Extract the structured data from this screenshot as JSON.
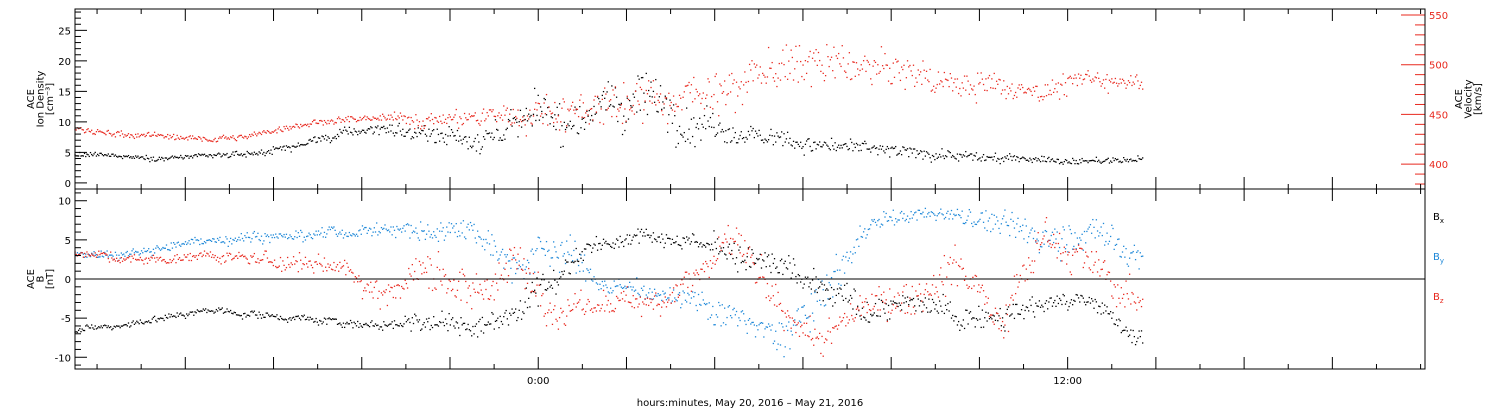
{
  "colors": {
    "black": "#000000",
    "red": "#e8281e",
    "blue": "#1e88d8",
    "frame": "#000000"
  },
  "figure": {
    "xlabel": "hours:minutes, May 20, 2016 – May 21, 2016",
    "x_unit": "hours relative to 2016-05-21 00:00",
    "xlim": [
      -10.5,
      20.1
    ],
    "x_tick_labels": [
      {
        "t": 0,
        "label": "0:00"
      },
      {
        "t": 12,
        "label": "12:00"
      }
    ],
    "x_major_ticks": [
      -8,
      -6,
      -4,
      -2,
      0,
      2,
      4,
      6,
      8,
      10,
      12,
      14,
      16,
      18
    ]
  },
  "chart_data": [
    {
      "type": "scatter",
      "panel": "plasma",
      "ylabel_lines": [
        "ACE",
        "Ion Density",
        "[cm⁻³]"
      ],
      "ylim": [
        -1,
        28.5
      ],
      "yticks": [
        0,
        5,
        10,
        15,
        20,
        25
      ],
      "y2label_lines": [
        "ACE",
        "Velocity",
        "[km/s]"
      ],
      "y2lim": [
        375,
        556
      ],
      "y2ticks": [
        400,
        450,
        500,
        550
      ],
      "series": [
        {
          "key": "density",
          "axis": "left",
          "color": "#000000",
          "x": [
            -10.5,
            -9.5,
            -8.5,
            -7.5,
            -6.5,
            -5.5,
            -4.5,
            -3.5,
            -2.5,
            -1.5,
            -0.5,
            0.5,
            1.5,
            2.5,
            3.5,
            4.5,
            5.5,
            6.5,
            7.5,
            8.5,
            9.5,
            10.5,
            11.5,
            12.5,
            13.7
          ],
          "values": [
            4.5,
            4.5,
            4.0,
            4.3,
            4.8,
            6.0,
            8.0,
            9.0,
            7.5,
            7.0,
            9.5,
            11.0,
            12.0,
            14.0,
            10.5,
            9.0,
            7.0,
            6.0,
            5.5,
            5.0,
            4.5,
            4.0,
            3.8,
            3.5,
            3.8
          ],
          "spread": [
            0.4,
            0.4,
            0.4,
            0.4,
            0.5,
            0.6,
            0.7,
            0.9,
            1.6,
            2.0,
            2.5,
            3.0,
            3.5,
            4.5,
            3.0,
            2.0,
            1.5,
            1.2,
            1.0,
            0.9,
            0.8,
            0.7,
            0.6,
            0.5,
            0.5
          ]
        },
        {
          "key": "velocity",
          "axis": "right",
          "color": "#e8281e",
          "x": [
            -10.5,
            -9.5,
            -8.5,
            -7.5,
            -6.5,
            -5.5,
            -4.5,
            -3.5,
            -2.5,
            -1.5,
            -0.5,
            0.5,
            1.5,
            2.5,
            3.5,
            4.5,
            5.5,
            6.5,
            7.5,
            8.5,
            9.5,
            10.5,
            11.5,
            12.5,
            13.7
          ],
          "values": [
            435,
            430,
            428,
            425,
            428,
            440,
            445,
            445,
            445,
            445,
            450,
            455,
            460,
            465,
            470,
            480,
            495,
            500,
            495,
            490,
            480,
            480,
            475,
            485,
            485
          ],
          "spread": [
            3,
            3,
            3,
            3,
            3,
            3,
            3,
            4,
            8,
            10,
            12,
            16,
            18,
            18,
            18,
            20,
            22,
            20,
            18,
            16,
            14,
            12,
            10,
            9,
            9
          ]
        }
      ]
    },
    {
      "type": "scatter",
      "panel": "magnetic",
      "ylabel_lines": [
        "ACE",
        "B",
        "[nT]"
      ],
      "ylim": [
        -11.5,
        11.5
      ],
      "yticks": [
        -10,
        -5,
        0,
        5,
        10
      ],
      "zero_line": true,
      "series": [
        {
          "key": "bx",
          "name": "B",
          "sub": "x",
          "color": "#000000",
          "x": [
            -10.5,
            -9.5,
            -8.5,
            -7.5,
            -6.5,
            -5.5,
            -4.5,
            -3.5,
            -2.5,
            -1.5,
            -0.5,
            0.5,
            1.5,
            2.5,
            3.5,
            4.5,
            5.5,
            6.5,
            7.5,
            8.5,
            9.5,
            10.5,
            11.5,
            12.5,
            13.7
          ],
          "values": [
            -6.5,
            -6.0,
            -5.0,
            -4.0,
            -4.5,
            -5.0,
            -5.5,
            -6.0,
            -5.0,
            -6.5,
            -4.0,
            1.0,
            5.0,
            6.0,
            5.0,
            3.0,
            1.0,
            -2.0,
            -4.0,
            -3.0,
            -5.0,
            -4.0,
            -3.0,
            -3.0,
            -7.5
          ],
          "spread": [
            0.4,
            0.4,
            0.4,
            0.4,
            0.5,
            0.5,
            0.5,
            0.7,
            1.5,
            1.5,
            2.0,
            2.0,
            0.8,
            0.8,
            1.0,
            1.5,
            2.0,
            2.0,
            1.5,
            1.5,
            1.5,
            1.5,
            1.2,
            1.2,
            1.0
          ]
        },
        {
          "key": "by",
          "name": "B",
          "sub": "y",
          "color": "#1e88d8",
          "x": [
            -10.5,
            -9.5,
            -8.5,
            -7.5,
            -6.5,
            -5.5,
            -4.5,
            -3.5,
            -2.5,
            -1.5,
            -0.5,
            0.5,
            1.5,
            2.5,
            3.5,
            4.5,
            5.5,
            6.5,
            7.5,
            8.5,
            9.5,
            10.5,
            11.5,
            12.5,
            13.7
          ],
          "values": [
            3.0,
            3.0,
            4.0,
            5.0,
            5.5,
            5.5,
            6.0,
            6.5,
            6.0,
            7.0,
            2.0,
            4.0,
            -1.0,
            -1.5,
            -2.5,
            -5.0,
            -8.0,
            -2.0,
            7.0,
            8.0,
            8.5,
            7.0,
            5.0,
            6.5,
            2.5
          ],
          "spread": [
            0.5,
            0.5,
            0.6,
            0.6,
            0.6,
            0.6,
            0.7,
            0.8,
            1.5,
            1.5,
            2.5,
            2.5,
            1.0,
            1.0,
            1.5,
            2.0,
            2.5,
            2.5,
            1.0,
            0.8,
            0.8,
            1.5,
            2.0,
            2.0,
            2.0
          ]
        },
        {
          "key": "bz",
          "name": "B",
          "sub": "z",
          "color": "#e8281e",
          "x": [
            -10.5,
            -9.5,
            -8.5,
            -7.5,
            -6.5,
            -5.5,
            -4.5,
            -3.5,
            -2.5,
            -1.5,
            -0.5,
            0.5,
            1.5,
            2.5,
            3.5,
            4.5,
            5.5,
            6.5,
            7.5,
            8.5,
            9.5,
            10.5,
            11.5,
            12.5,
            13.7
          ],
          "values": [
            3.5,
            2.5,
            2.5,
            3.0,
            2.5,
            2.0,
            2.0,
            -2.0,
            2.0,
            -2.0,
            2.0,
            -4.0,
            -3.0,
            -3.0,
            0.0,
            5.0,
            -5.0,
            -8.0,
            -3.0,
            -2.0,
            2.0,
            -5.0,
            6.0,
            2.0,
            -4.0
          ],
          "spread": [
            0.5,
            0.6,
            0.6,
            0.7,
            0.8,
            1.0,
            1.2,
            2.0,
            2.5,
            2.5,
            2.5,
            2.0,
            1.5,
            1.5,
            2.0,
            2.0,
            2.0,
            2.0,
            2.0,
            2.0,
            2.5,
            2.5,
            2.0,
            2.0,
            2.0
          ]
        }
      ]
    }
  ]
}
